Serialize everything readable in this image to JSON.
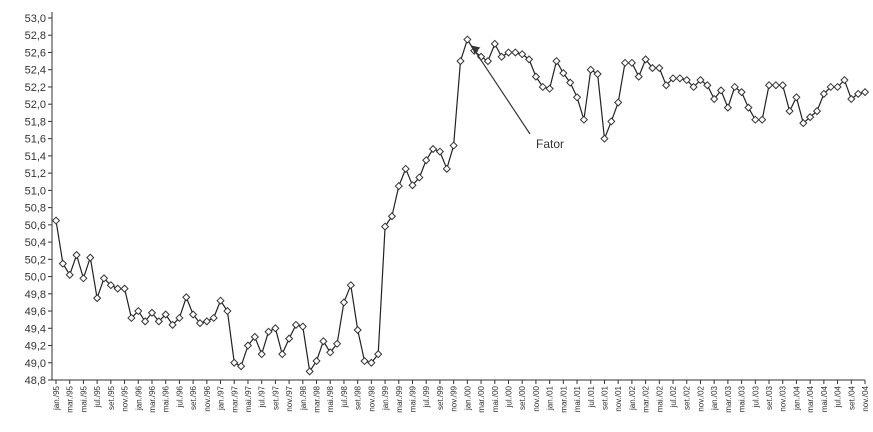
{
  "chart_data": {
    "type": "line",
    "title": "",
    "xlabel": "",
    "ylabel": "",
    "ylim": [
      48.8,
      53.0
    ],
    "yticks": [
      "53,0",
      "52,8",
      "52,6",
      "52,4",
      "52,2",
      "52,0",
      "51,8",
      "51,6",
      "51,4",
      "51,2",
      "51,0",
      "50,8",
      "50,6",
      "50,4",
      "50,2",
      "50,0",
      "49,8",
      "49,6",
      "49,4",
      "49,2",
      "49,0",
      "48,8"
    ],
    "x_tick_labels": [
      "jan./95",
      "mar./95",
      "mai./95",
      "jul./95",
      "set./95",
      "nov./95",
      "jan./96",
      "mar./96",
      "mai./96",
      "jul./96",
      "set./96",
      "nov./96",
      "jan./97",
      "mar./97",
      "mai./97",
      "jul./97",
      "set./97",
      "nov./97",
      "jan./98",
      "mar./98",
      "mai./98",
      "jul./98",
      "set./98",
      "nov./98",
      "jan./99",
      "mar./99",
      "mai./99",
      "jul./99",
      "set./99",
      "nov./99",
      "jan./00",
      "mar./00",
      "mai./00",
      "jul./00",
      "set./00",
      "nov./00",
      "jan./01",
      "mar./01",
      "mai./01",
      "jul./01",
      "set./01",
      "nov./01",
      "jan./02",
      "mar./02",
      "mai./02",
      "jul./02",
      "set./02",
      "nov./02",
      "jan./03",
      "mar./03",
      "mai./03",
      "jul./03",
      "set./03",
      "nov./03",
      "jan./04",
      "mar./04",
      "mai./04",
      "jul./04",
      "set./04",
      "nov./04"
    ],
    "series": [
      {
        "values": [
          50.65,
          50.15,
          50.02,
          50.25,
          49.98,
          50.22,
          49.75,
          49.98,
          49.9,
          49.86,
          49.86,
          49.52,
          49.6,
          49.48,
          49.58,
          49.48,
          49.56,
          49.44,
          49.52,
          49.76,
          49.56,
          49.46,
          49.48,
          49.52,
          49.72,
          49.6,
          49.0,
          48.96,
          49.2,
          49.3,
          49.1,
          49.36,
          49.4,
          49.1,
          49.28,
          49.44,
          49.42,
          48.9,
          49.02,
          49.25,
          49.12,
          49.22,
          49.7,
          49.9,
          49.38,
          49.02,
          49.0,
          49.1,
          50.58,
          50.7,
          51.05,
          51.25,
          51.06,
          51.15,
          51.35,
          51.48,
          51.45,
          51.25,
          51.52,
          52.5,
          52.75,
          52.62,
          52.55,
          52.5,
          52.7,
          52.55,
          52.6,
          52.6,
          52.58,
          52.52,
          52.32,
          52.2,
          52.18,
          52.5,
          52.36,
          52.25,
          52.08,
          51.82,
          52.4,
          52.35,
          51.6,
          51.8,
          52.02,
          52.48,
          52.48,
          52.32,
          52.52,
          52.42,
          52.42,
          52.22,
          52.3,
          52.3,
          52.28,
          52.2,
          52.28,
          52.22,
          52.06,
          52.16,
          51.96,
          52.2,
          52.14,
          51.96,
          51.82,
          51.82,
          52.22,
          52.22,
          52.22,
          51.92,
          52.08,
          51.78,
          51.85,
          51.92,
          52.12,
          52.2,
          52.2,
          52.28,
          52.06,
          52.12,
          52.14
        ]
      }
    ],
    "annotations": [
      {
        "text": "Fator",
        "target_index": 60
      }
    ],
    "grid": false,
    "legend": "none"
  }
}
